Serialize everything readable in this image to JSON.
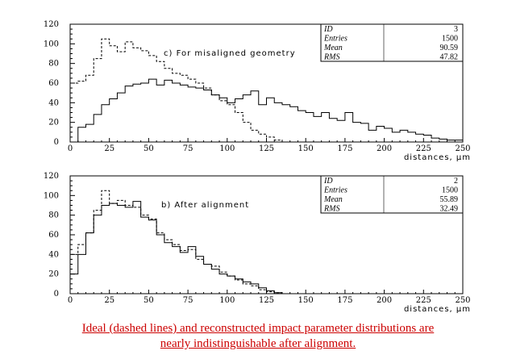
{
  "chart_data": [
    {
      "type": "histogram",
      "annotation": "c)  For misaligned geometry",
      "xlabel": "distances, μm",
      "xlim": [
        0,
        250
      ],
      "ylim": [
        0,
        120
      ],
      "xticks": [
        "0",
        "25",
        "50",
        "75",
        "100",
        "125",
        "150",
        "175",
        "200",
        "225",
        "250"
      ],
      "yticks": [
        "0",
        "20",
        "40",
        "60",
        "80",
        "100",
        "120"
      ],
      "stats": [
        {
          "label": "ID",
          "value": "3"
        },
        {
          "label": "Entries",
          "value": "1500"
        },
        {
          "label": "Mean",
          "value": "90.59"
        },
        {
          "label": "RMS",
          "value": "47.82"
        }
      ],
      "bin_width": 5,
      "series": [
        {
          "style": "solid",
          "values": [
            0,
            15,
            18,
            28,
            38,
            44,
            50,
            57,
            59,
            60,
            64,
            58,
            63,
            60,
            58,
            56,
            55,
            53,
            48,
            45,
            40,
            44,
            48,
            52,
            38,
            45,
            40,
            38,
            36,
            32,
            30,
            26,
            30,
            24,
            22,
            30,
            20,
            19,
            12,
            16,
            14,
            10,
            12,
            10,
            8,
            7,
            4,
            3,
            2,
            2
          ]
        },
        {
          "style": "dashed",
          "values": [
            60,
            62,
            68,
            85,
            105,
            98,
            92,
            102,
            96,
            93,
            88,
            82,
            75,
            70,
            68,
            64,
            60,
            55,
            48,
            42,
            38,
            30,
            20,
            12,
            8,
            5,
            2,
            0,
            0,
            0,
            0,
            0,
            0,
            0,
            0,
            0,
            0,
            0,
            0,
            0,
            0,
            0,
            0,
            0,
            0,
            0,
            0,
            0,
            0,
            0
          ]
        }
      ]
    },
    {
      "type": "histogram",
      "annotation": "b)  After alignment",
      "xlabel": "distances, μm",
      "xlim": [
        0,
        250
      ],
      "ylim": [
        0,
        120
      ],
      "xticks": [
        "0",
        "25",
        "50",
        "75",
        "100",
        "125",
        "150",
        "175",
        "200",
        "225",
        "250"
      ],
      "yticks": [
        "0",
        "20",
        "40",
        "60",
        "80",
        "100",
        "120"
      ],
      "stats": [
        {
          "label": "ID",
          "value": "2"
        },
        {
          "label": "Entries",
          "value": "1500"
        },
        {
          "label": "Mean",
          "value": "55.89"
        },
        {
          "label": "RMS",
          "value": "32.49"
        }
      ],
      "bin_width": 5,
      "series": [
        {
          "style": "solid",
          "values": [
            20,
            40,
            62,
            80,
            90,
            92,
            90,
            88,
            94,
            78,
            75,
            60,
            52,
            48,
            42,
            48,
            38,
            30,
            25,
            20,
            18,
            15,
            12,
            10,
            6,
            3,
            1,
            0,
            0,
            0,
            0,
            0,
            0,
            0,
            0,
            0,
            0,
            0,
            0,
            0,
            0,
            0,
            0,
            0,
            0,
            0,
            0,
            0,
            0,
            0
          ]
        },
        {
          "style": "dashed",
          "values": [
            40,
            50,
            62,
            85,
            105,
            92,
            95,
            90,
            88,
            80,
            76,
            62,
            55,
            50,
            44,
            45,
            35,
            30,
            28,
            22,
            18,
            14,
            10,
            8,
            4,
            2,
            1,
            0,
            0,
            0,
            0,
            0,
            0,
            0,
            0,
            0,
            0,
            0,
            0,
            0,
            0,
            0,
            0,
            0,
            0,
            0,
            0,
            0,
            0,
            0
          ]
        }
      ]
    }
  ],
  "caption": {
    "line1": "Ideal (dashed lines) and reconstructed impact parameter distributions are",
    "line2": "nearly indistinguishable after alignment."
  }
}
